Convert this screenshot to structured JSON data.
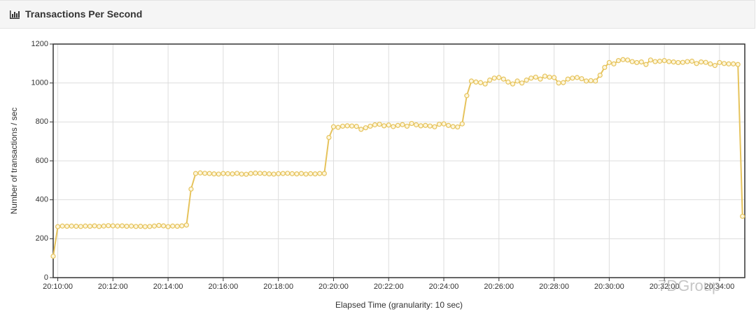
{
  "header": {
    "title": "Transactions Per Second"
  },
  "watermark": "7DGroup",
  "chart_data": {
    "type": "line",
    "xlabel": "Elapsed Time (granularity: 10 sec)",
    "ylabel": "Number of transactions / sec",
    "xlim": [
      "20:09:50",
      "20:34:55"
    ],
    "xticks": [
      "20:10:00",
      "20:12:00",
      "20:14:00",
      "20:16:00",
      "20:18:00",
      "20:20:00",
      "20:22:00",
      "20:24:00",
      "20:26:00",
      "20:28:00",
      "20:30:00",
      "20:32:00",
      "20:34:00"
    ],
    "ylim": [
      0,
      1200
    ],
    "yticks": [
      0,
      200,
      400,
      600,
      800,
      1000,
      1200
    ],
    "grid": true,
    "x": [
      "20:09:50",
      "20:10:00",
      "20:10:10",
      "20:10:20",
      "20:10:30",
      "20:10:40",
      "20:10:50",
      "20:11:00",
      "20:11:10",
      "20:11:20",
      "20:11:30",
      "20:11:40",
      "20:11:50",
      "20:12:00",
      "20:12:10",
      "20:12:20",
      "20:12:30",
      "20:12:40",
      "20:12:50",
      "20:13:00",
      "20:13:10",
      "20:13:20",
      "20:13:30",
      "20:13:40",
      "20:13:50",
      "20:14:00",
      "20:14:10",
      "20:14:20",
      "20:14:30",
      "20:14:40",
      "20:14:50",
      "20:15:00",
      "20:15:10",
      "20:15:20",
      "20:15:30",
      "20:15:40",
      "20:15:50",
      "20:16:00",
      "20:16:10",
      "20:16:20",
      "20:16:30",
      "20:16:40",
      "20:16:50",
      "20:17:00",
      "20:17:10",
      "20:17:20",
      "20:17:30",
      "20:17:40",
      "20:17:50",
      "20:18:00",
      "20:18:10",
      "20:18:20",
      "20:18:30",
      "20:18:40",
      "20:18:50",
      "20:19:00",
      "20:19:10",
      "20:19:20",
      "20:19:30",
      "20:19:40",
      "20:19:50",
      "20:20:00",
      "20:20:10",
      "20:20:20",
      "20:20:30",
      "20:20:40",
      "20:20:50",
      "20:21:00",
      "20:21:10",
      "20:21:20",
      "20:21:30",
      "20:21:40",
      "20:21:50",
      "20:22:00",
      "20:22:10",
      "20:22:20",
      "20:22:30",
      "20:22:40",
      "20:22:50",
      "20:23:00",
      "20:23:10",
      "20:23:20",
      "20:23:30",
      "20:23:40",
      "20:23:50",
      "20:24:00",
      "20:24:10",
      "20:24:20",
      "20:24:30",
      "20:24:40",
      "20:24:50",
      "20:25:00",
      "20:25:10",
      "20:25:20",
      "20:25:30",
      "20:25:40",
      "20:25:50",
      "20:26:00",
      "20:26:10",
      "20:26:20",
      "20:26:30",
      "20:26:40",
      "20:26:50",
      "20:27:00",
      "20:27:10",
      "20:27:20",
      "20:27:30",
      "20:27:40",
      "20:27:50",
      "20:28:00",
      "20:28:10",
      "20:28:20",
      "20:28:30",
      "20:28:40",
      "20:28:50",
      "20:29:00",
      "20:29:10",
      "20:29:20",
      "20:29:30",
      "20:29:40",
      "20:29:50",
      "20:30:00",
      "20:30:10",
      "20:30:20",
      "20:30:30",
      "20:30:40",
      "20:30:50",
      "20:31:00",
      "20:31:10",
      "20:31:20",
      "20:31:30",
      "20:31:40",
      "20:31:50",
      "20:32:00",
      "20:32:10",
      "20:32:20",
      "20:32:30",
      "20:32:40",
      "20:32:50",
      "20:33:00",
      "20:33:10",
      "20:33:20",
      "20:33:30",
      "20:33:40",
      "20:33:50",
      "20:34:00",
      "20:34:10",
      "20:34:20",
      "20:34:30",
      "20:34:40",
      "20:34:50"
    ],
    "series": [
      {
        "name": "Transactions Per Second",
        "color": "#e6c35c",
        "values": [
          110,
          262,
          265,
          264,
          265,
          264,
          263,
          265,
          264,
          266,
          263,
          265,
          267,
          266,
          265,
          266,
          264,
          265,
          263,
          264,
          262,
          263,
          265,
          268,
          266,
          262,
          265,
          264,
          266,
          270,
          455,
          535,
          538,
          536,
          535,
          533,
          532,
          535,
          534,
          533,
          536,
          532,
          531,
          535,
          537,
          536,
          535,
          533,
          532,
          534,
          535,
          536,
          534,
          533,
          535,
          532,
          534,
          533,
          535,
          535,
          720,
          775,
          772,
          778,
          780,
          779,
          777,
          762,
          770,
          778,
          785,
          788,
          780,
          784,
          776,
          782,
          786,
          778,
          792,
          785,
          780,
          782,
          779,
          775,
          788,
          790,
          782,
          776,
          774,
          790,
          935,
          1010,
          1005,
          1002,
          995,
          1015,
          1025,
          1028,
          1020,
          1005,
          995,
          1010,
          1000,
          1015,
          1025,
          1030,
          1020,
          1035,
          1030,
          1028,
          1000,
          1002,
          1020,
          1025,
          1028,
          1022,
          1010,
          1012,
          1010,
          1040,
          1080,
          1105,
          1098,
          1115,
          1120,
          1118,
          1110,
          1105,
          1108,
          1095,
          1118,
          1110,
          1112,
          1115,
          1110,
          1108,
          1105,
          1106,
          1110,
          1112,
          1100,
          1108,
          1106,
          1098,
          1090,
          1105,
          1100,
          1098,
          1098,
          1095,
          315
        ]
      }
    ]
  }
}
